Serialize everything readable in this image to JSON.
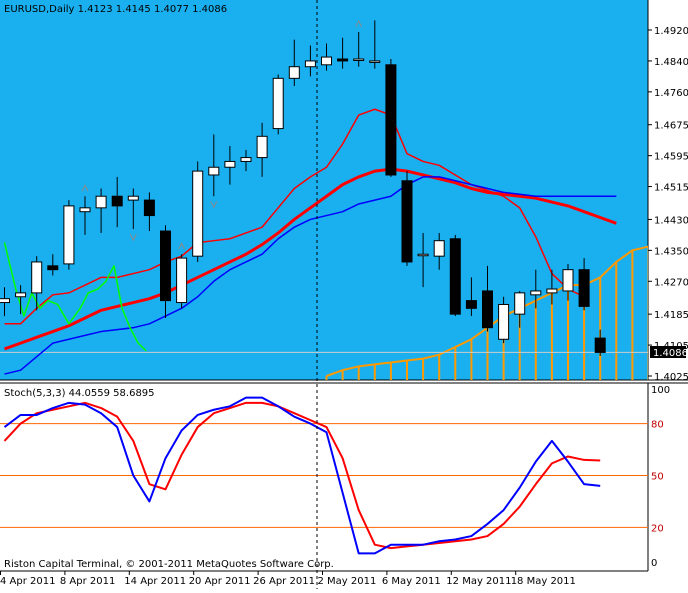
{
  "main_title": "EURUSD,Daily  1.4123 1.4145 1.4077 1.4086",
  "stoch_title": "Stoch(5,3,3) 44.0559 58.6895",
  "copyright": "Riston Capital Terminal, © 2001-2011 MetaQuotes Software Corp.",
  "current_price_label": "1.4086",
  "colors": {
    "plot_bg": "#1AB0F0",
    "stoch_bg": "#FFFFFF",
    "bull_body": "#FFFFFF",
    "bear_body": "#000000",
    "red_line": "#FF0000",
    "blue_line": "#0000FF",
    "green_line": "#00FF00",
    "cloud": "#FF9900",
    "stoch_main": "#0000FF",
    "stoch_signal": "#FF0000",
    "stoch_level": "#FF6600"
  },
  "chart_data": [
    {
      "type": "candlestick",
      "title": "EURUSD,Daily  1.4123 1.4145 1.4077 1.4086",
      "ylim": [
        1.4025,
        1.4962
      ],
      "y_ticks": [
        "1.4920",
        "1.4840",
        "1.4760",
        "1.4675",
        "1.4595",
        "1.4515",
        "1.4430",
        "1.4350",
        "1.4270",
        "1.4185",
        "1.4105",
        "1.4025"
      ],
      "x_ticks": [
        "4 Apr 2011",
        "8 Apr 2011",
        "14 Apr 2011",
        "20 Apr 2011",
        "26 Apr 2011",
        "2 May 2011",
        "6 May 2011",
        "12 May 2011",
        "18 May 2011"
      ],
      "candles": [
        {
          "o": 1.4215,
          "h": 1.4255,
          "l": 1.418,
          "c": 1.4225
        },
        {
          "o": 1.423,
          "h": 1.426,
          "l": 1.4185,
          "c": 1.424
        },
        {
          "o": 1.424,
          "h": 1.4335,
          "l": 1.4195,
          "c": 1.432
        },
        {
          "o": 1.431,
          "h": 1.434,
          "l": 1.4285,
          "c": 1.43
        },
        {
          "o": 1.4315,
          "h": 1.448,
          "l": 1.43,
          "c": 1.4465
        },
        {
          "o": 1.445,
          "h": 1.449,
          "l": 1.439,
          "c": 1.446
        },
        {
          "o": 1.446,
          "h": 1.451,
          "l": 1.4395,
          "c": 1.449
        },
        {
          "o": 1.449,
          "h": 1.454,
          "l": 1.441,
          "c": 1.4465
        },
        {
          "o": 1.448,
          "h": 1.451,
          "l": 1.4405,
          "c": 1.449
        },
        {
          "o": 1.448,
          "h": 1.45,
          "l": 1.44,
          "c": 1.444
        },
        {
          "o": 1.44,
          "h": 1.4415,
          "l": 1.4175,
          "c": 1.422
        },
        {
          "o": 1.4215,
          "h": 1.434,
          "l": 1.42,
          "c": 1.433
        },
        {
          "o": 1.4335,
          "h": 1.458,
          "l": 1.432,
          "c": 1.4555
        },
        {
          "o": 1.4545,
          "h": 1.465,
          "l": 1.449,
          "c": 1.4565
        },
        {
          "o": 1.4565,
          "h": 1.462,
          "l": 1.452,
          "c": 1.458
        },
        {
          "o": 1.458,
          "h": 1.461,
          "l": 1.4555,
          "c": 1.459
        },
        {
          "o": 1.459,
          "h": 1.468,
          "l": 1.454,
          "c": 1.4645
        },
        {
          "o": 1.4665,
          "h": 1.4805,
          "l": 1.465,
          "c": 1.4795
        },
        {
          "o": 1.4795,
          "h": 1.4895,
          "l": 1.4775,
          "c": 1.4825
        },
        {
          "o": 1.4825,
          "h": 1.488,
          "l": 1.48,
          "c": 1.484
        },
        {
          "o": 1.483,
          "h": 1.4885,
          "l": 1.4815,
          "c": 1.485
        },
        {
          "o": 1.4845,
          "h": 1.49,
          "l": 1.482,
          "c": 1.484
        },
        {
          "o": 1.4845,
          "h": 1.4915,
          "l": 1.4825,
          "c": 1.4845
        },
        {
          "o": 1.484,
          "h": 1.4945,
          "l": 1.482,
          "c": 1.484
        },
        {
          "o": 1.483,
          "h": 1.4845,
          "l": 1.454,
          "c": 1.4545
        },
        {
          "o": 1.453,
          "h": 1.4555,
          "l": 1.431,
          "c": 1.432
        },
        {
          "o": 1.434,
          "h": 1.4395,
          "l": 1.4255,
          "c": 1.434
        },
        {
          "o": 1.4335,
          "h": 1.4395,
          "l": 1.43,
          "c": 1.4375
        },
        {
          "o": 1.438,
          "h": 1.439,
          "l": 1.418,
          "c": 1.4185
        },
        {
          "o": 1.422,
          "h": 1.428,
          "l": 1.418,
          "c": 1.42
        },
        {
          "o": 1.4245,
          "h": 1.431,
          "l": 1.414,
          "c": 1.415
        },
        {
          "o": 1.412,
          "h": 1.423,
          "l": 1.411,
          "c": 1.421
        },
        {
          "o": 1.4185,
          "h": 1.4245,
          "l": 1.415,
          "c": 1.424
        },
        {
          "o": 1.4235,
          "h": 1.43,
          "l": 1.42,
          "c": 1.4245
        },
        {
          "o": 1.424,
          "h": 1.43,
          "l": 1.421,
          "c": 1.425
        },
        {
          "o": 1.4245,
          "h": 1.4315,
          "l": 1.422,
          "c": 1.43
        },
        {
          "o": 1.43,
          "h": 1.433,
          "l": 1.4195,
          "c": 1.4205
        },
        {
          "o": 1.4123,
          "h": 1.4145,
          "l": 1.4077,
          "c": 1.4086
        }
      ],
      "series": [
        {
          "key": "red_upper",
          "x": [
            0,
            1,
            2,
            3,
            4,
            5,
            6,
            7,
            8,
            9,
            10,
            11,
            12,
            13,
            14,
            15,
            16,
            17,
            18,
            19,
            20,
            21,
            22,
            23,
            24,
            25,
            26,
            27,
            28,
            29,
            30,
            31,
            32,
            33,
            34,
            35,
            36
          ],
          "values": [
            1.416,
            1.416,
            1.42,
            1.4235,
            1.424,
            1.426,
            1.428,
            1.428,
            1.429,
            1.43,
            1.432,
            1.4335,
            1.437,
            1.4375,
            1.438,
            1.4395,
            1.441,
            1.446,
            1.451,
            1.454,
            1.4565,
            1.4625,
            1.47,
            1.4715,
            1.47,
            1.46,
            1.458,
            1.457,
            1.4545,
            1.452,
            1.4505,
            1.449,
            1.446,
            1.4385,
            1.429,
            1.425,
            1.423
          ]
        },
        {
          "key": "red_main",
          "x": [
            0,
            1,
            2,
            3,
            4,
            5,
            6,
            7,
            8,
            9,
            10,
            11,
            12,
            13,
            14,
            15,
            16,
            17,
            18,
            19,
            20,
            21,
            22,
            23,
            24,
            25,
            26,
            27,
            28,
            29,
            30,
            31,
            32,
            33,
            34,
            35,
            36,
            37,
            38
          ],
          "values": [
            1.4095,
            1.411,
            1.4125,
            1.414,
            1.4155,
            1.4175,
            1.4195,
            1.4205,
            1.4215,
            1.4225,
            1.424,
            1.426,
            1.428,
            1.43,
            1.432,
            1.434,
            1.4365,
            1.4395,
            1.443,
            1.446,
            1.449,
            1.452,
            1.454,
            1.4555,
            1.456,
            1.4555,
            1.4545,
            1.4535,
            1.4525,
            1.451,
            1.45,
            1.4495,
            1.449,
            1.4485,
            1.4475,
            1.4465,
            1.445,
            1.4435,
            1.442
          ]
        },
        {
          "key": "blue_lower",
          "x": [
            0,
            1,
            2,
            3,
            4,
            5,
            6,
            7,
            8,
            9,
            10,
            11,
            12,
            13,
            14,
            15,
            16,
            17,
            18,
            19,
            20,
            21,
            22,
            23,
            24,
            25,
            26,
            27,
            28,
            29,
            30,
            31,
            32,
            33,
            34,
            35,
            36,
            37,
            38
          ],
          "values": [
            1.403,
            1.404,
            1.4075,
            1.411,
            1.412,
            1.413,
            1.414,
            1.4145,
            1.415,
            1.416,
            1.418,
            1.42,
            1.423,
            1.427,
            1.43,
            1.432,
            1.434,
            1.438,
            1.441,
            1.443,
            1.444,
            1.445,
            1.447,
            1.448,
            1.449,
            1.452,
            1.454,
            1.454,
            1.453,
            1.452,
            1.451,
            1.45,
            1.4495,
            1.449,
            1.449,
            1.449,
            1.449,
            1.449,
            1.449
          ]
        },
        {
          "key": "green",
          "x": [
            0,
            0.7,
            1.2,
            1.7,
            2.2,
            2.7,
            3.3,
            4.0,
            4.7,
            5.2,
            5.8,
            6.3,
            6.8,
            7.3,
            7.8,
            8.3,
            8.8
          ],
          "values": [
            1.437,
            1.425,
            1.418,
            1.424,
            1.42,
            1.422,
            1.421,
            1.416,
            1.42,
            1.424,
            1.425,
            1.427,
            1.431,
            1.42,
            1.415,
            1.411,
            1.409
          ]
        },
        {
          "key": "cloud_top",
          "x": [
            20,
            21,
            22,
            23,
            24,
            25,
            26,
            27,
            28,
            29,
            30,
            31,
            32,
            33,
            34,
            35,
            36,
            37,
            38,
            39,
            40
          ],
          "values": [
            1.4025,
            1.404,
            1.405,
            1.4055,
            1.406,
            1.4065,
            1.407,
            1.408,
            1.41,
            1.412,
            1.415,
            1.418,
            1.42,
            1.422,
            1.424,
            1.426,
            1.426,
            1.428,
            1.432,
            1.435,
            1.436
          ]
        },
        {
          "key": "price_line",
          "x": [
            -1,
            40.4
          ],
          "values": [
            1.4086,
            1.4086
          ]
        }
      ],
      "fractal_up": [
        5,
        11,
        22
      ],
      "fractal_down": [
        8,
        13
      ]
    },
    {
      "type": "line",
      "title": "Stoch(5,3,3) 44.0559 58.6895",
      "ylim": [
        0,
        100
      ],
      "levels": [
        80,
        50,
        20
      ],
      "right_labels": [
        "100",
        "80",
        "50",
        "20",
        "0"
      ],
      "series": [
        {
          "key": "main",
          "x": [
            0,
            1,
            2,
            3,
            4,
            5,
            6,
            7,
            8,
            9,
            10,
            11,
            12,
            13,
            14,
            15,
            16,
            17,
            18,
            19,
            20,
            21,
            22,
            23,
            24,
            25,
            26,
            27,
            28,
            29,
            30,
            31,
            32,
            33,
            34,
            35,
            36,
            37
          ],
          "values": [
            78,
            85,
            85,
            89,
            92,
            91,
            86,
            78,
            50,
            35,
            60,
            76,
            85,
            88,
            90,
            95,
            95,
            90,
            84,
            80,
            75,
            40,
            5,
            5,
            10,
            10,
            10,
            12,
            13,
            15,
            22,
            30,
            43,
            58,
            70,
            58,
            45,
            44
          ]
        },
        {
          "key": "signal",
          "x": [
            0,
            1,
            2,
            3,
            4,
            5,
            6,
            7,
            8,
            9,
            10,
            11,
            12,
            13,
            14,
            15,
            16,
            17,
            18,
            19,
            20,
            21,
            22,
            23,
            24,
            25,
            26,
            27,
            28,
            29,
            30,
            31,
            32,
            33,
            34,
            35,
            36,
            37
          ],
          "values": [
            70,
            80,
            86,
            88,
            90,
            92,
            89,
            84,
            70,
            45,
            42,
            62,
            78,
            86,
            89,
            92,
            92,
            90,
            86,
            82,
            78,
            60,
            30,
            10,
            8,
            9,
            10,
            11,
            12,
            13,
            15,
            22,
            32,
            45,
            57,
            61,
            59,
            58.69
          ]
        }
      ]
    }
  ]
}
